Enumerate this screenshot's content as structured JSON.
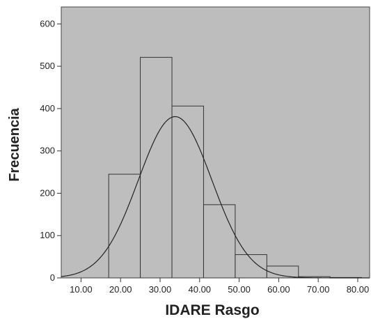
{
  "chart_data": {
    "type": "bar",
    "subtype": "histogram_with_normal_curve",
    "xlabel": "IDARE Rasgo",
    "ylabel": "Frecuencia",
    "xlim": [
      5,
      83
    ],
    "ylim": [
      0,
      640
    ],
    "x_ticks": [
      10,
      20,
      30,
      40,
      50,
      60,
      70,
      80
    ],
    "x_tick_labels": [
      "10.00",
      "20.00",
      "30.00",
      "40.00",
      "50.00",
      "60.00",
      "70.00",
      "80.00"
    ],
    "y_ticks": [
      0,
      100,
      200,
      300,
      400,
      500,
      600
    ],
    "y_tick_labels": [
      "0",
      "100",
      "200",
      "300",
      "400",
      "500",
      "600"
    ],
    "bins": [
      {
        "start": 17,
        "end": 25,
        "value": 245
      },
      {
        "start": 25,
        "end": 33,
        "value": 521
      },
      {
        "start": 33,
        "end": 41,
        "value": 406
      },
      {
        "start": 41,
        "end": 49,
        "value": 173
      },
      {
        "start": 49,
        "end": 57,
        "value": 55
      },
      {
        "start": 57,
        "end": 65,
        "value": 28
      },
      {
        "start": 65,
        "end": 73,
        "value": 3
      },
      {
        "start": 73,
        "end": 81,
        "value": 1
      }
    ],
    "normal_curve": {
      "mean": 33.8,
      "sd": 9.3,
      "peak": 381
    },
    "grid": false,
    "legend": "none",
    "colors": {
      "plot_background": "#bdbdbd",
      "bar_fill": "#bebebe",
      "bar_edge": "#333333",
      "curve": "#222222"
    }
  }
}
